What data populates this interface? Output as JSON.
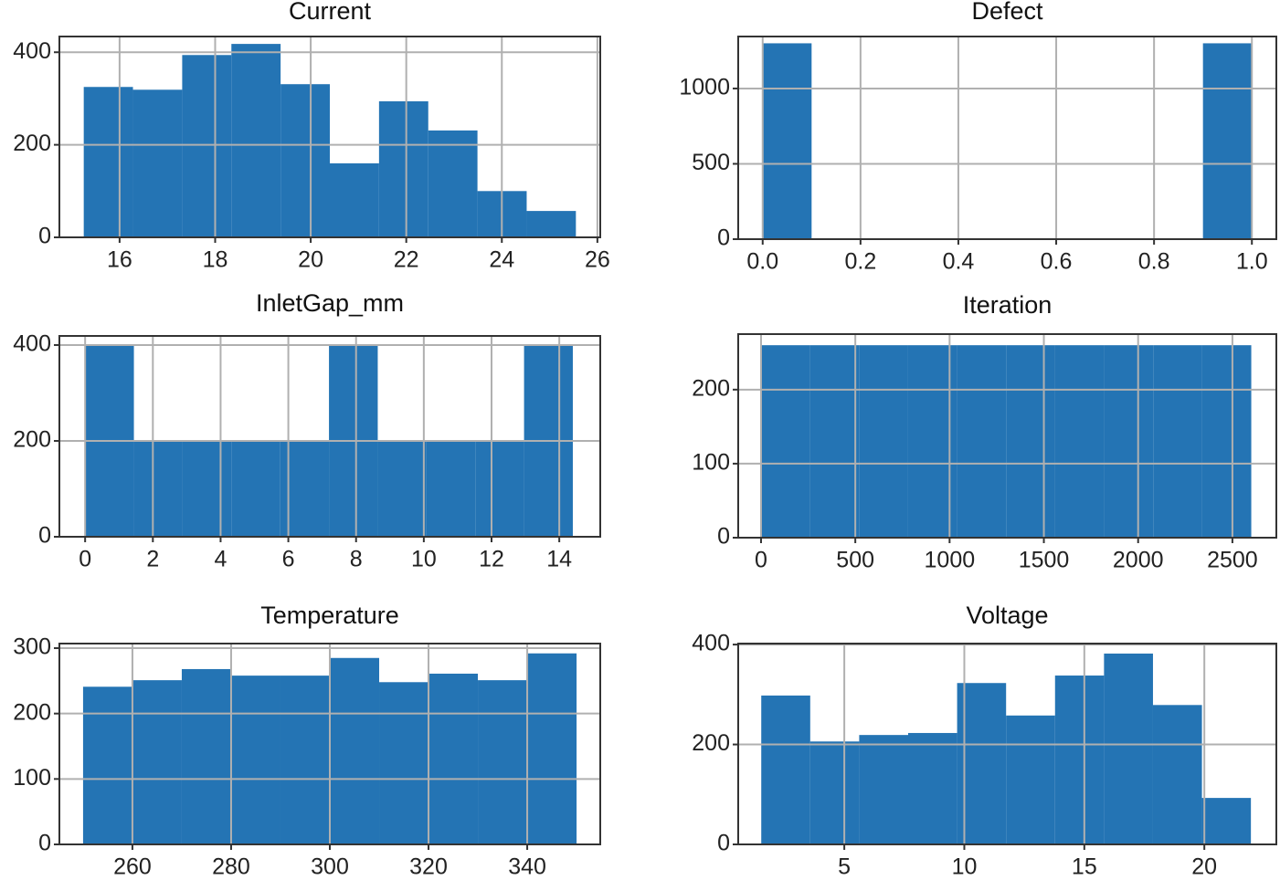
{
  "chart_data": [
    {
      "type": "histogram",
      "title": "Current",
      "color": "#2474b4",
      "grid": true,
      "bins": [
        15.25,
        16.28,
        17.31,
        18.34,
        19.37,
        20.4,
        21.43,
        22.46,
        23.49,
        24.52,
        25.55
      ],
      "values": [
        325,
        319,
        394,
        418,
        331,
        160,
        294,
        231,
        100,
        57
      ],
      "xlim": [
        14.74,
        26.06
      ],
      "ylim": [
        0,
        434
      ],
      "xticks": [
        16,
        18,
        20,
        22,
        24,
        26
      ],
      "yticks": [
        0,
        200,
        400
      ]
    },
    {
      "type": "histogram",
      "title": "Defect",
      "color": "#2474b4",
      "grid": true,
      "bins": [
        0,
        0.1,
        0.2,
        0.3,
        0.4,
        0.5,
        0.6,
        0.7,
        0.8,
        0.9,
        1
      ],
      "values": [
        1300,
        0,
        0,
        0,
        0,
        0,
        0,
        0,
        0,
        1300
      ],
      "xlim": [
        -0.05,
        1.05
      ],
      "ylim": [
        0,
        1345
      ],
      "xticks": [
        {
          "value": 0,
          "label": "0.0"
        },
        0.2,
        0.4,
        0.6,
        0.8,
        {
          "value": 1,
          "label": "1.0"
        }
      ],
      "yticks": [
        0,
        500,
        1000
      ]
    },
    {
      "type": "histogram",
      "title": "InletGap_mm",
      "color": "#2474b4",
      "grid": true,
      "bins": [
        0,
        1.44,
        2.88,
        4.32,
        5.76,
        7.2,
        8.64,
        10.08,
        11.52,
        12.96,
        14.4
      ],
      "values": [
        400,
        200,
        200,
        200,
        200,
        400,
        200,
        200,
        200,
        400
      ],
      "xlim": [
        -0.76,
        15.21
      ],
      "ylim": [
        0,
        419
      ],
      "xticks": [
        0,
        2,
        4,
        6,
        8,
        10,
        12,
        14
      ],
      "yticks": [
        0,
        200,
        400
      ]
    },
    {
      "type": "histogram",
      "title": "Iteration",
      "color": "#2474b4",
      "grid": true,
      "bins": [
        0,
        260,
        520,
        780,
        1040,
        1300,
        1560,
        1820,
        2080,
        2340,
        2600
      ],
      "values": [
        260,
        260,
        260,
        260,
        260,
        260,
        260,
        260,
        260,
        260
      ],
      "xlim": [
        -121,
        2733
      ],
      "ylim": [
        0,
        275
      ],
      "xticks": [
        0,
        500,
        1000,
        1500,
        2000,
        2500
      ],
      "yticks": [
        0,
        100,
        200
      ]
    },
    {
      "type": "histogram",
      "title": "Temperature",
      "color": "#2474b4",
      "grid": true,
      "bins": [
        250,
        260,
        270,
        280,
        290,
        300,
        310,
        320,
        330,
        340,
        350
      ],
      "values": [
        241,
        251,
        268,
        258,
        258,
        285,
        248,
        261,
        251,
        292
      ],
      "xlim": [
        245.2,
        354.8
      ],
      "ylim": [
        0,
        307
      ],
      "xticks": [
        260,
        280,
        300,
        320,
        340
      ],
      "yticks": [
        0,
        100,
        200,
        300
      ]
    },
    {
      "type": "histogram",
      "title": "Voltage",
      "color": "#2474b4",
      "grid": true,
      "bins": [
        1.54,
        3.58,
        5.62,
        7.66,
        9.7,
        11.74,
        13.78,
        15.82,
        17.86,
        19.9,
        21.94
      ],
      "values": [
        298,
        206,
        219,
        223,
        323,
        258,
        338,
        382,
        279,
        93
      ],
      "xlim": [
        0.58,
        23.0
      ],
      "ylim": [
        0,
        402
      ],
      "xticks": [
        5,
        10,
        15,
        20
      ],
      "yticks": [
        0,
        200,
        400
      ]
    }
  ]
}
